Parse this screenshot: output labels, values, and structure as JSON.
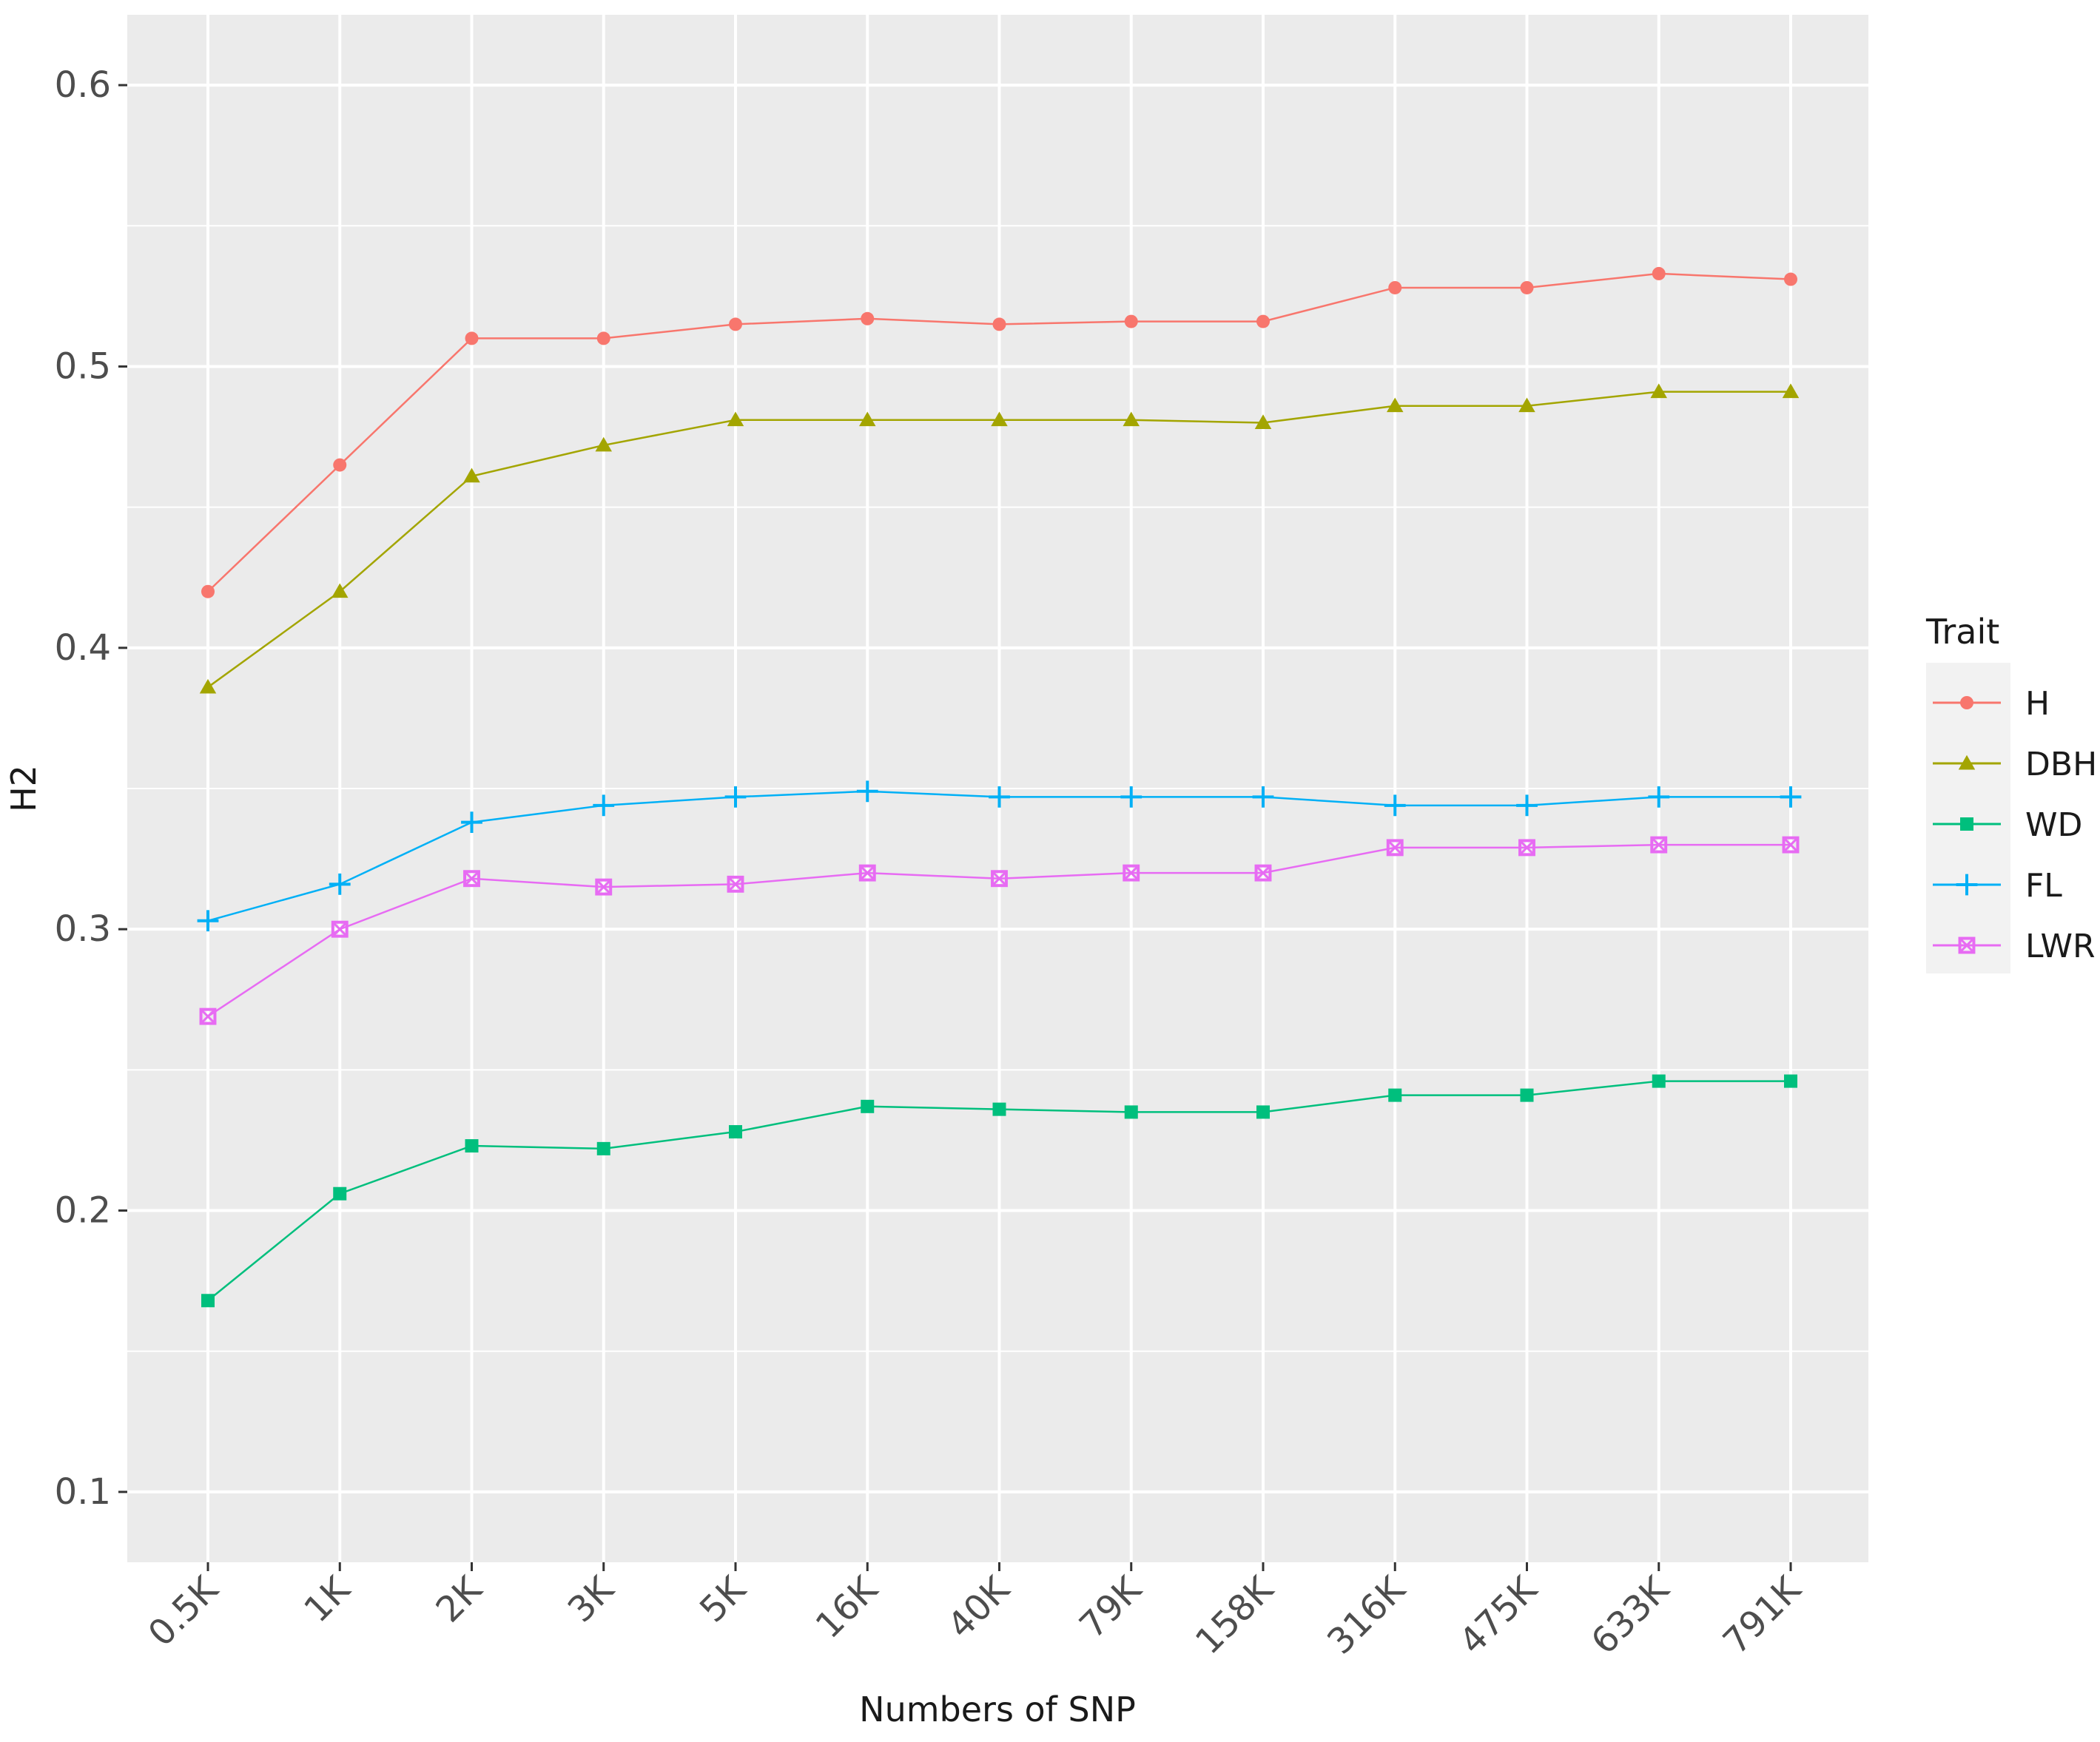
{
  "chart_data": {
    "type": "line",
    "title": "",
    "xlabel": "Numbers of SNP",
    "ylabel": "H2",
    "categories": [
      "0.5K",
      "1K",
      "2K",
      "3K",
      "5K",
      "16K",
      "40K",
      "79K",
      "158K",
      "316K",
      "475K",
      "633K",
      "791K"
    ],
    "yticks": [
      "0.1",
      "0.2",
      "0.3",
      "0.4",
      "0.5",
      "0.6"
    ],
    "ylim": [
      0.075,
      0.625
    ],
    "grid": true,
    "legend": {
      "title": "Trait",
      "position": "right"
    },
    "series": [
      {
        "name": "H",
        "color": "#F8766D",
        "marker": "circle",
        "values": [
          0.42,
          0.465,
          0.51,
          0.51,
          0.515,
          0.517,
          0.515,
          0.516,
          0.516,
          0.528,
          0.528,
          0.533,
          0.531
        ]
      },
      {
        "name": "DBH",
        "color": "#A3A500",
        "marker": "triangle",
        "values": [
          0.386,
          0.42,
          0.461,
          0.472,
          0.481,
          0.481,
          0.481,
          0.481,
          0.48,
          0.486,
          0.486,
          0.491,
          0.491
        ]
      },
      {
        "name": "WD",
        "color": "#00BF7D",
        "marker": "square",
        "values": [
          0.168,
          0.206,
          0.223,
          0.222,
          0.228,
          0.237,
          0.236,
          0.235,
          0.235,
          0.241,
          0.241,
          0.246,
          0.246
        ]
      },
      {
        "name": "FL",
        "color": "#00B0F6",
        "marker": "plus",
        "values": [
          0.303,
          0.316,
          0.338,
          0.344,
          0.347,
          0.349,
          0.347,
          0.347,
          0.347,
          0.344,
          0.344,
          0.347,
          0.347
        ]
      },
      {
        "name": "LWR",
        "color": "#E76BF3",
        "marker": "boxed-x",
        "values": [
          0.269,
          0.3,
          0.318,
          0.315,
          0.316,
          0.32,
          0.318,
          0.32,
          0.32,
          0.329,
          0.329,
          0.33,
          0.33
        ]
      }
    ]
  }
}
